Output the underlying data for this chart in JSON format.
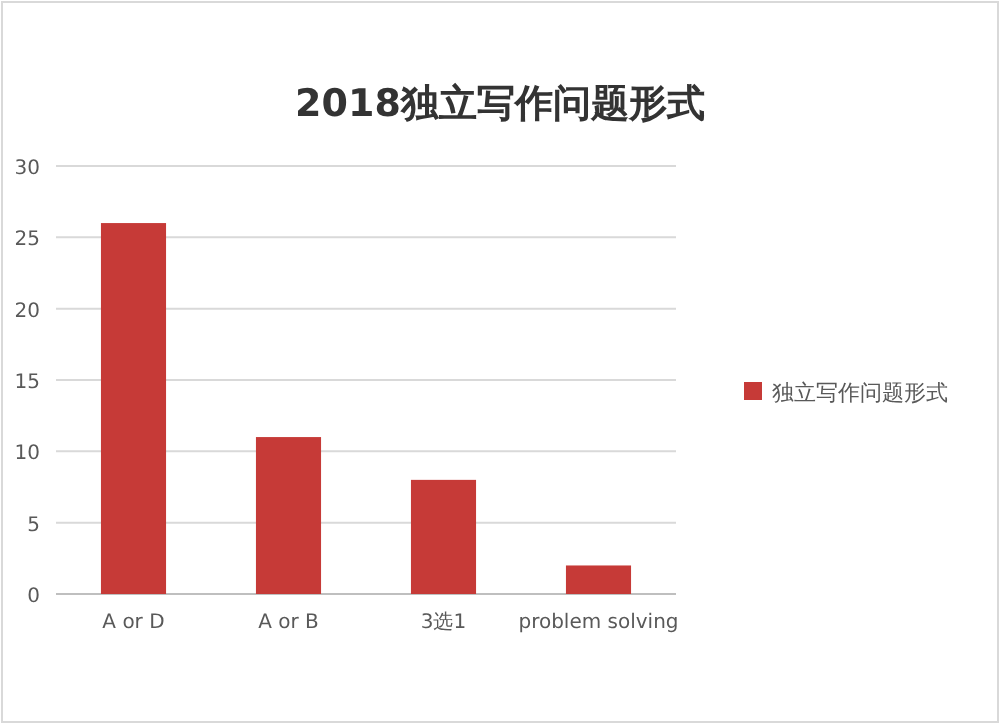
{
  "chart_data": {
    "type": "bar",
    "title": "2018独立写作问题形式",
    "categories": [
      "A or D",
      "A or B",
      "3选1",
      "problem solving"
    ],
    "series": [
      {
        "name": "独立写作问题形式",
        "color": "#c63a37",
        "values": [
          26,
          11,
          8,
          2
        ]
      }
    ],
    "ylim": [
      0,
      30
    ],
    "yticks": [
      0,
      5,
      10,
      15,
      20,
      25,
      30
    ],
    "grid": "y",
    "legend": "right"
  }
}
